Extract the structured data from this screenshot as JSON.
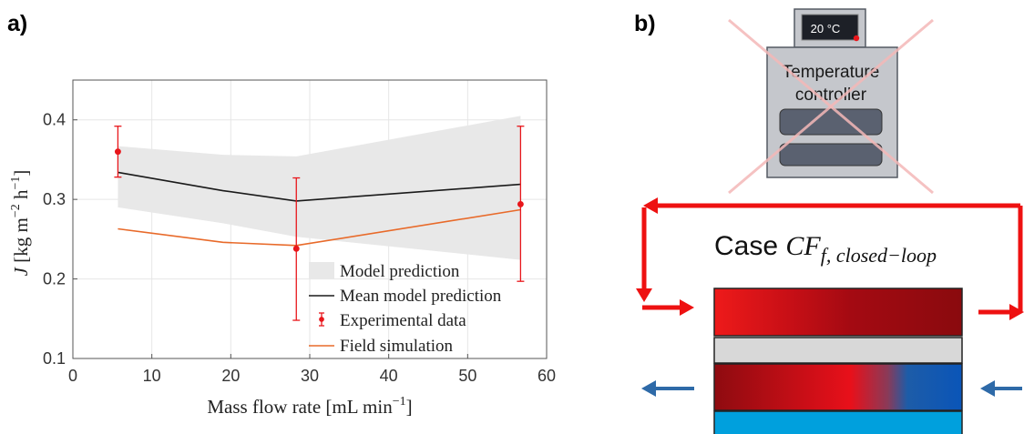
{
  "panels": {
    "a_label": "a)",
    "b_label": "b)"
  },
  "chart_data": {
    "type": "line",
    "xlabel": "Mass flow rate [mL min",
    "xlabel_exp": "−1",
    "xlabel_close": "]",
    "ylabel_italic": "J",
    "ylabel_rest": " [kg m",
    "ylabel_exp1": "−2",
    "ylabel_mid": " h",
    "ylabel_exp2": "−1",
    "ylabel_close": "]",
    "xlim": [
      0,
      60
    ],
    "ylim": [
      0.1,
      0.45
    ],
    "xticks": [
      0,
      10,
      20,
      30,
      40,
      50,
      60
    ],
    "xtick_labels": [
      "0",
      "10",
      "20",
      "30",
      "40",
      "50",
      "60"
    ],
    "yticks": [
      0.1,
      0.2,
      0.3,
      0.4
    ],
    "ytick_labels": [
      "0.1",
      "0.2",
      "0.3",
      "0.4"
    ],
    "grid": true,
    "legend_position": "bottom-right",
    "band": {
      "name": "Model prediction",
      "color": "#e8e8e8",
      "x": [
        5.7,
        19,
        28.3,
        56.7
      ],
      "upper": [
        0.367,
        0.356,
        0.354,
        0.405
      ],
      "lower": [
        0.29,
        0.27,
        0.253,
        0.224
      ]
    },
    "series": [
      {
        "name": "Mean model prediction",
        "color": "#1a1a1a",
        "x": [
          5.7,
          19,
          28.3,
          56.7
        ],
        "y": [
          0.334,
          0.311,
          0.298,
          0.319
        ]
      },
      {
        "name": "Field simulation",
        "color": "#e86a2a",
        "x": [
          5.7,
          19,
          28.3,
          56.7
        ],
        "y": [
          0.263,
          0.246,
          0.242,
          0.287
        ]
      }
    ],
    "experimental": {
      "name": "Experimental data",
      "color": "#e8161b",
      "x": [
        5.7,
        28.3,
        56.7
      ],
      "y": [
        0.36,
        0.238,
        0.294
      ],
      "err_low": [
        0.328,
        0.148,
        0.197
      ],
      "err_high": [
        0.392,
        0.327,
        0.392
      ]
    }
  },
  "diagram": {
    "display_value": "20 °C",
    "controller_line1": "Temperature",
    "controller_line2": "controller",
    "case_prefix": "Case ",
    "case_symbol": "CF",
    "case_subscript": "f, closed−loop",
    "colors": {
      "loop_red": "#ee1111",
      "flow_blue": "#2e6aa8",
      "cross": "#f4b8b8",
      "controller_body": "#c5c7cc",
      "controller_slot": "#5a6170",
      "membrane": "#d8d8d8",
      "coolant": "#00a0dd"
    }
  }
}
